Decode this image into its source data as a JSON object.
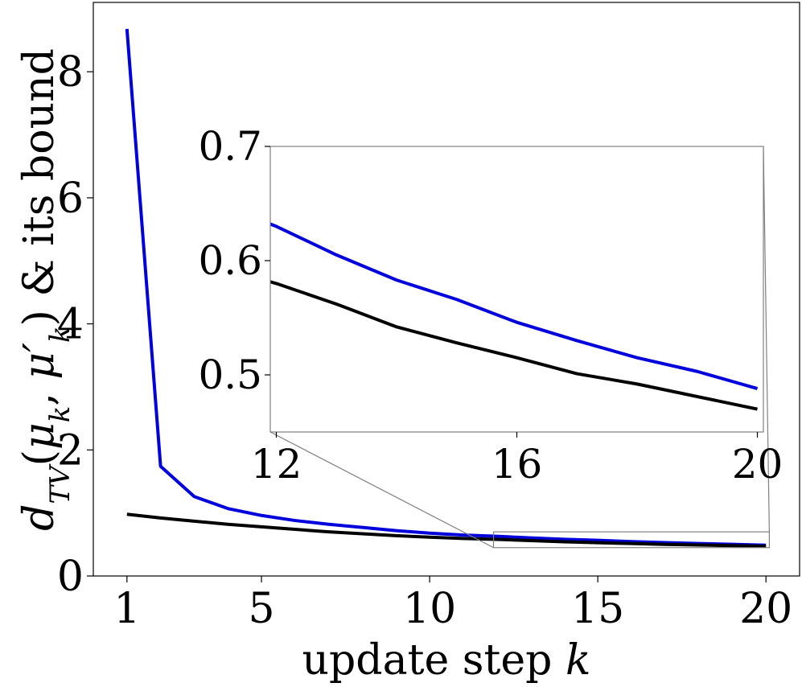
{
  "chart_data": {
    "type": "line",
    "title": "",
    "xlabel": "update step k",
    "ylabel": "d_TV(μ_k, μ'_k) & its bound",
    "ylabel_parts": {
      "d": "d",
      "sub_TV": "TV",
      "open": "(",
      "mu": "μ",
      "sub_k": "k",
      "comma": ", ",
      "mu_prime": "μ′",
      "sub_k2": "k",
      "close": ")",
      "rest": " & its bound"
    },
    "xlabel_parts": {
      "text": "update step ",
      "var": "k"
    },
    "xlim": [
      0,
      21.0
    ],
    "ylim": [
      0,
      9.1
    ],
    "xticks": [
      1,
      5,
      10,
      15,
      20
    ],
    "yticks": [
      0,
      2,
      4,
      6,
      8
    ],
    "grid": false,
    "series": [
      {
        "color": "#0000dd",
        "x": [
          1,
          2,
          3,
          4,
          5,
          6,
          7,
          8,
          9,
          10,
          11,
          12,
          13,
          14,
          15,
          16,
          17,
          18,
          19,
          20
        ],
        "values": [
          8.68,
          1.74,
          1.26,
          1.07,
          0.96,
          0.88,
          0.82,
          0.77,
          0.72,
          0.68,
          0.65,
          0.63,
          0.605,
          0.583,
          0.566,
          0.546,
          0.53,
          0.515,
          0.503,
          0.488
        ]
      },
      {
        "color": "#000000",
        "x": [
          1,
          2,
          3,
          4,
          5,
          6,
          7,
          8,
          9,
          10,
          11,
          12,
          13,
          14,
          15,
          16,
          17,
          18,
          19,
          20
        ],
        "values": [
          0.98,
          0.92,
          0.87,
          0.82,
          0.78,
          0.74,
          0.7,
          0.67,
          0.64,
          0.615,
          0.595,
          0.58,
          0.562,
          0.542,
          0.528,
          0.515,
          0.501,
          0.492,
          0.481,
          0.47
        ]
      }
    ],
    "inset": {
      "xlim": [
        11.9,
        20.1
      ],
      "ylim": [
        0.45,
        0.7
      ],
      "xticks": [
        12,
        16,
        20
      ],
      "yticks": [
        0.5,
        0.6,
        0.7
      ],
      "ytick_labels": [
        "0.5",
        "0.6",
        "0.7"
      ]
    }
  }
}
